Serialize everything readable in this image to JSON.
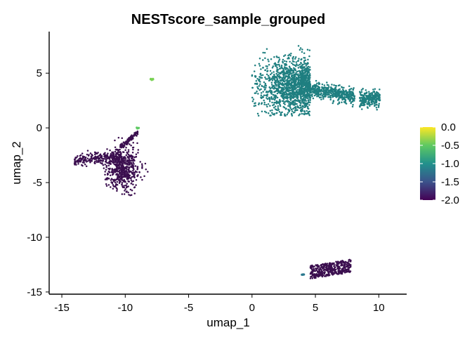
{
  "chart_data": {
    "type": "scatter",
    "title": "NESTscore_sample_grouped",
    "xlabel": "umap_1",
    "ylabel": "umap_2",
    "xlim": [
      -16.0,
      12.2
    ],
    "ylim": [
      -15.2,
      8.8
    ],
    "x_ticks": [
      -15,
      -10,
      -5,
      0,
      5,
      10
    ],
    "y_ticks": [
      -15,
      -10,
      -5,
      0,
      5
    ],
    "x_tick_labels": [
      "-15",
      "-10",
      "-5",
      "0",
      "5",
      "10"
    ],
    "y_tick_labels": [
      "-15",
      "-10",
      "-5",
      "0",
      "5"
    ],
    "grid": false,
    "legend_position": "right",
    "color_scale": {
      "type": "viridis",
      "min": -2.0,
      "max": 0.0,
      "ticks": [
        0.0,
        -0.5,
        -1.0,
        -1.5,
        -2.0
      ],
      "tick_labels": [
        "0.0",
        "-0.5",
        "-1.0",
        "-1.5",
        "-2.0"
      ],
      "colors": [
        "#440154",
        "#3b528b",
        "#21918c",
        "#5ec962",
        "#fde725"
      ]
    },
    "clusters": [
      {
        "center": [
          3.2,
          3.8
        ],
        "spread": [
          2.5,
          1.7
        ],
        "approx_value": -1.05,
        "color": "#1f7f80",
        "point_count": 2100
      },
      {
        "center": [
          -11.2,
          -3.9
        ],
        "spread": [
          1.9,
          1.2
        ],
        "approx_value": -2.0,
        "color": "#3b0f4f",
        "point_count": 900
      },
      {
        "center": [
          6.2,
          -12.9
        ],
        "spread": [
          1.5,
          0.6
        ],
        "approx_value": -2.0,
        "color": "#3b0f4f",
        "point_count": 420
      },
      {
        "center": [
          -7.9,
          4.4
        ],
        "spread": [
          0.1,
          0.08
        ],
        "approx_value": -0.45,
        "color": "#78d152",
        "point_count": 6
      },
      {
        "center": [
          -9.0,
          0.0
        ],
        "spread": [
          0.1,
          0.06
        ],
        "approx_value": -0.6,
        "color": "#5ec962",
        "point_count": 3
      },
      {
        "center": [
          4.0,
          -13.4
        ],
        "spread": [
          0.12,
          0.05
        ],
        "approx_value": -1.2,
        "color": "#2a788e",
        "point_count": 4
      }
    ]
  }
}
